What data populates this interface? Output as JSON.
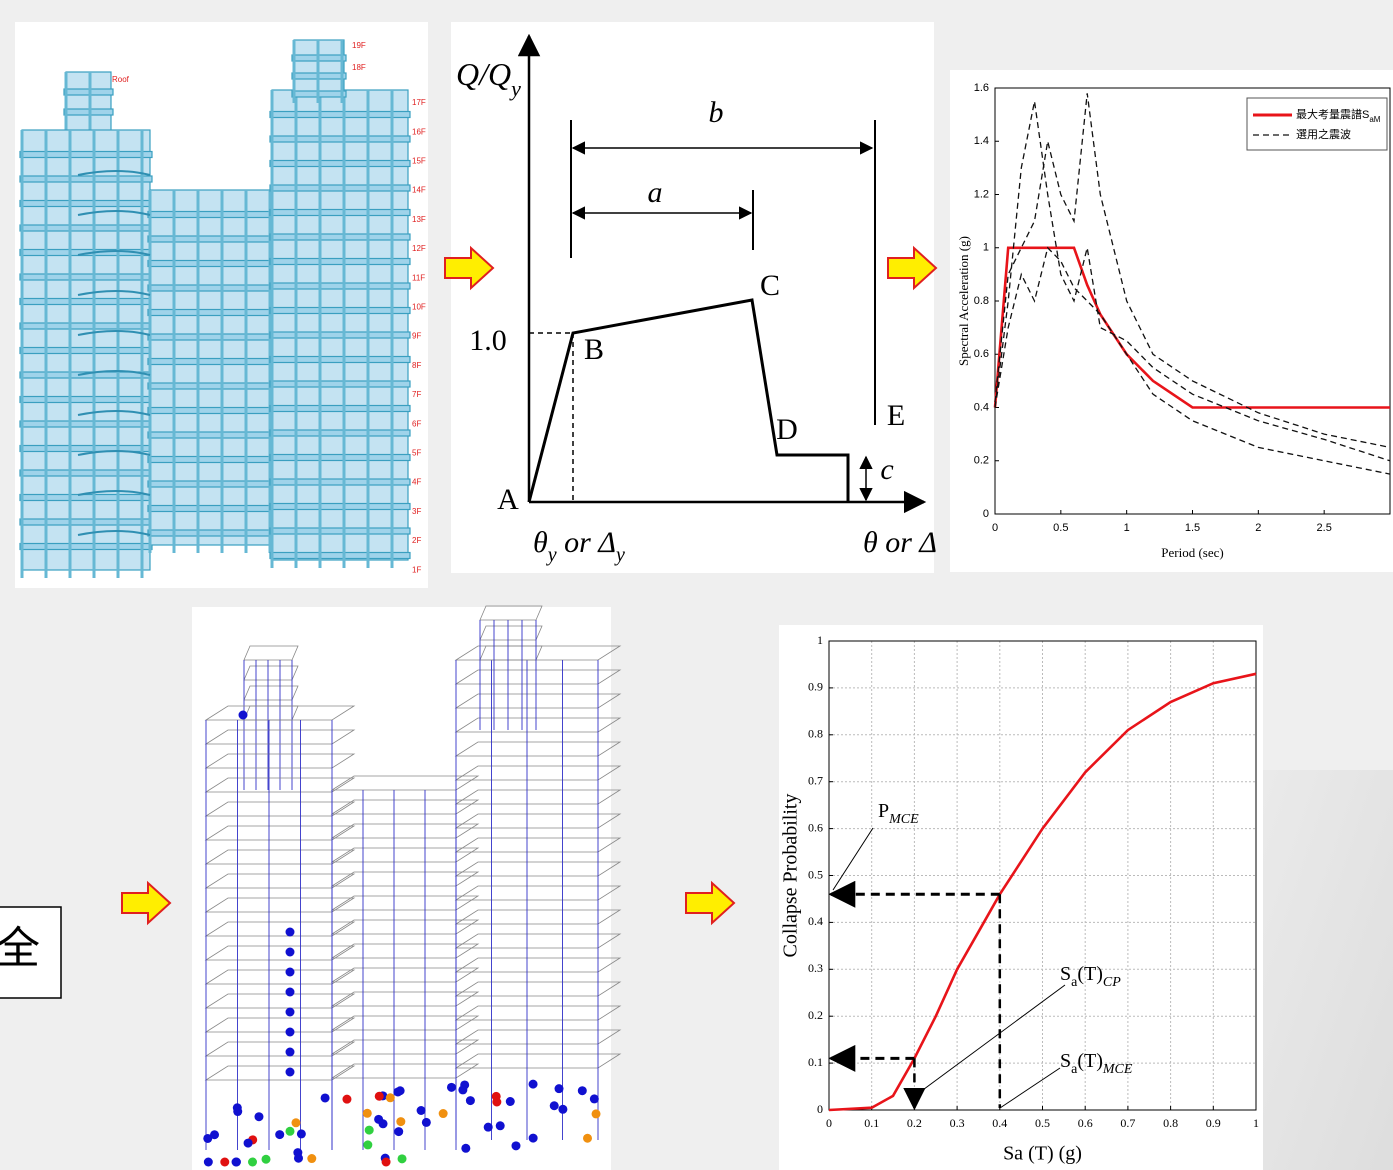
{
  "side_label": "全",
  "building_model": {
    "floor_labels": [
      "Roof",
      "19F",
      "18F",
      "17F",
      "16F",
      "15F",
      "14F",
      "13F",
      "12F",
      "11F",
      "10F",
      "9F",
      "8F",
      "7F",
      "6F",
      "5F",
      "4F",
      "3F",
      "2F",
      "1F"
    ]
  },
  "backbone": {
    "y_label": [
      "Q/Q",
      "y"
    ],
    "b": "b",
    "a": "a",
    "C": "C",
    "yield_level": "1.0",
    "B": "B",
    "D": "D",
    "E": "E",
    "c": "c",
    "A": "A",
    "x_label_yield": [
      "θ",
      "y",
      " or Δ",
      "y"
    ],
    "x_label": "θ or Δ"
  },
  "chart_data": [
    {
      "type": "line",
      "x_label": "Period (sec)",
      "y_label": "Spectral Acceleration (g)",
      "x": [
        0,
        0.1,
        0.2,
        0.3,
        0.4,
        0.5,
        0.6,
        0.7,
        0.8,
        1.0,
        1.2,
        1.5,
        2.0,
        2.5,
        3.0
      ],
      "xlim": [
        0,
        3
      ],
      "ylim": [
        0,
        1.6
      ],
      "xticks": [
        0,
        0.5,
        1,
        1.5,
        2,
        2.5
      ],
      "yticks": [
        0,
        0.2,
        0.4,
        0.6,
        0.8,
        1,
        1.2,
        1.4,
        1.6
      ],
      "legend": "upper right",
      "series": [
        {
          "name": [
            "最大考量震譜S",
            "aM"
          ],
          "color": "#e8141a",
          "style": "solid",
          "values": [
            0.4,
            1,
            1,
            1,
            1,
            1,
            1,
            0.86,
            0.75,
            0.6,
            0.5,
            0.4,
            0.4,
            0.4,
            0.4
          ]
        },
        {
          "name": "選用之震波",
          "color": "#111111",
          "style": "dashed",
          "values": [
            0.4,
            0.8,
            1.3,
            1.55,
            1.2,
            0.9,
            0.8,
            1.0,
            0.7,
            0.65,
            0.55,
            0.45,
            0.35,
            0.28,
            0.2
          ]
        },
        {
          "color": "#111111",
          "style": "dashed",
          "values": [
            0.42,
            0.9,
            1.0,
            1.1,
            1.4,
            1.2,
            1.1,
            1.58,
            1.2,
            0.8,
            0.6,
            0.5,
            0.38,
            0.3,
            0.25
          ]
        },
        {
          "color": "#111111",
          "style": "dashed",
          "values": [
            0.4,
            0.7,
            0.9,
            0.8,
            1.0,
            0.95,
            0.85,
            0.8,
            0.75,
            0.6,
            0.45,
            0.35,
            0.25,
            0.2,
            0.15
          ]
        }
      ]
    },
    {
      "type": "line",
      "x_label": "Sa (T) (g)",
      "y_label": "Collapse Probability",
      "x": [
        0,
        0.1,
        0.15,
        0.2,
        0.25,
        0.3,
        0.35,
        0.4,
        0.5,
        0.6,
        0.7,
        0.8,
        0.9,
        1.0
      ],
      "xlim": [
        0,
        1
      ],
      "ylim": [
        0,
        1
      ],
      "xticks": [
        0,
        0.1,
        0.2,
        0.3,
        0.4,
        0.5,
        0.6,
        0.7,
        0.8,
        0.9,
        1
      ],
      "yticks": [
        0,
        0.1,
        0.2,
        0.3,
        0.4,
        0.5,
        0.6,
        0.7,
        0.8,
        0.9,
        1
      ],
      "grid": true,
      "series": [
        {
          "color": "#e8141a",
          "style": "solid",
          "values": [
            0,
            0.005,
            0.03,
            0.11,
            0.2,
            0.3,
            0.38,
            0.46,
            0.6,
            0.72,
            0.81,
            0.87,
            0.91,
            0.93
          ]
        }
      ],
      "markers": [
        {
          "x": 0.2,
          "y": 0.11
        },
        {
          "x": 0.4,
          "y": 0.46
        }
      ],
      "annotations": [
        [
          "P",
          "MCE"
        ],
        [
          "S",
          "a",
          "(T)",
          "CP"
        ],
        [
          "S",
          "a",
          "(T)",
          "MCE"
        ]
      ]
    }
  ]
}
